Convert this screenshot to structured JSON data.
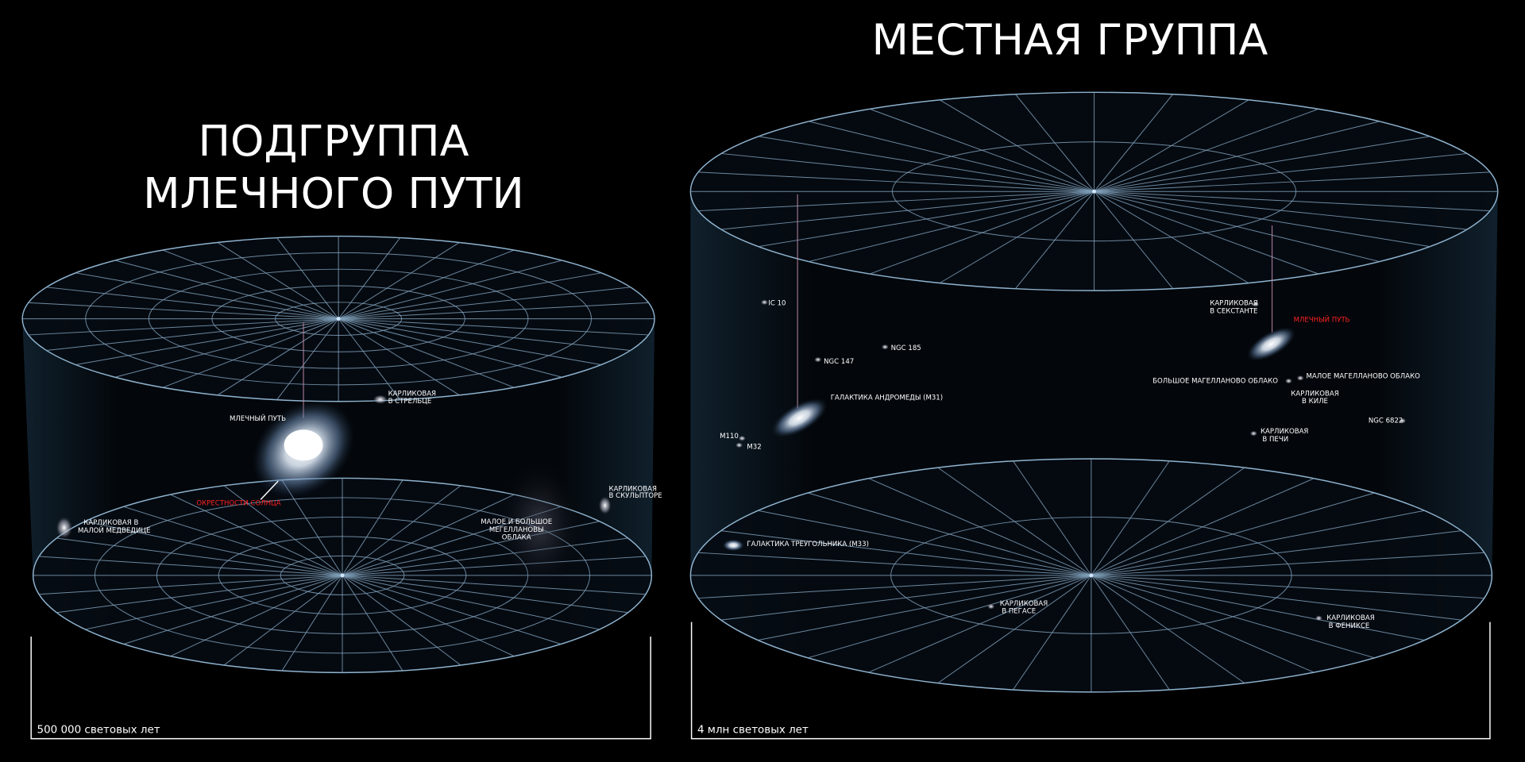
{
  "left": {
    "title_line1": "ПОДГРУППА",
    "title_line2": "МЛЕЧНОГО ПУТИ",
    "scale_label": "500 000 световых лет",
    "labels": {
      "milky_way": "МЛЕЧНЫЙ ПУТЬ",
      "sun_vicinity": "ОКРЕСТНОСТИ СОЛНЦА",
      "sagittarius_1": "КАРЛИКОВАЯ",
      "sagittarius_2": "В СТРЕЛЬЦЕ",
      "ursa_minor_1": "КАРЛИКОВАЯ В",
      "ursa_minor_2": "МАЛОЙ МЕДВЕДИЦЕ",
      "sculptor_1": "КАРЛИКОВАЯ",
      "sculptor_2": "В СКУЛЬПТОРЕ",
      "magellanic_1": "МАЛОЕ И БОЛЬШОЕ",
      "magellanic_2": "МЕГЕЛЛАНОВЫ",
      "magellanic_3": "ОБЛАКА"
    }
  },
  "right": {
    "title": "МЕСТНАЯ ГРУППА",
    "scale_label": "4 млн световых лет",
    "labels": {
      "ic10": "IC 10",
      "ngc185": "NGC 185",
      "ngc147": "NGC 147",
      "andromeda": "ГАЛАКТИКА АНДРОМЕДЫ (M31)",
      "m110": "M110",
      "m32": "M32",
      "triangulum": "ГАЛАКТИКА ТРЕУГОЛЬНИКА (M33)",
      "sextans_1": "КАРЛИКОВАЯ",
      "sextans_2": "В СЕКСТАНТЕ",
      "milky_way": "МЛЕЧНЫЙ ПУТЬ",
      "lmc": "БОЛЬШОЕ МАГЕЛЛАНОВО ОБЛАКО",
      "smc": "МАЛОЕ МАГЕЛЛАНОВО ОБЛАКО",
      "carina_1": "КАРЛИКОВАЯ",
      "carina_2": "В КИЛЕ",
      "ngc6822": "NGC 6822",
      "fornax_1": "КАРЛИКОВАЯ",
      "fornax_2": "В ПЕЧИ",
      "pegasus_1": "КАРЛИКОВАЯ",
      "pegasus_2": "В ПЕГАСЕ",
      "phoenix_1": "КАРЛИКОВАЯ",
      "phoenix_2": "В ФЕНИКСЕ"
    }
  },
  "colors": {
    "background": "#000000",
    "grid": "#7f9fb8",
    "highlight": "#ff2020"
  }
}
